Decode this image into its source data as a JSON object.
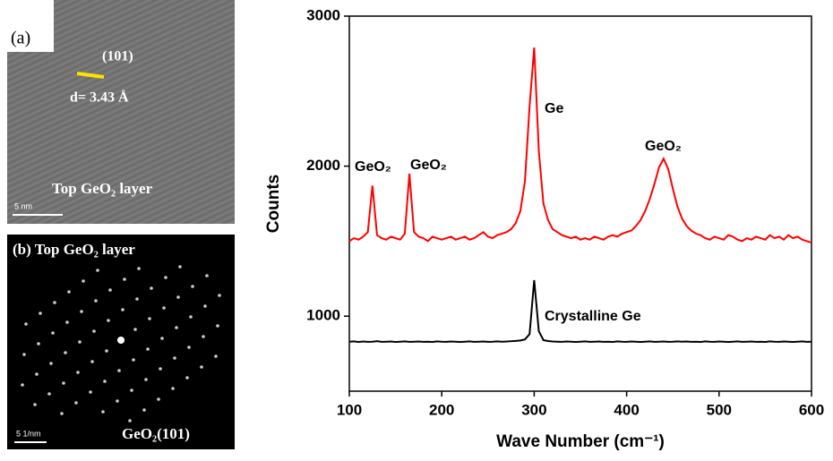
{
  "panels": {
    "a": {
      "label": "(a)",
      "plane": "(101)",
      "spacing": "d= 3.43 Å",
      "caption": "Top GeO₂ layer",
      "scale": "5 nm"
    },
    "b": {
      "label": "(b) Top GeO₂ layer",
      "caption": "GeO₂(101)",
      "scale": "5 1/nm"
    }
  },
  "chart_data": {
    "type": "line",
    "xlabel": "Wave Number (cm⁻¹)",
    "ylabel": "Counts",
    "xlim": [
      100,
      600
    ],
    "ylim": [
      500,
      3000
    ],
    "xticks": [
      100,
      200,
      300,
      400,
      500,
      600
    ],
    "yticks": [
      1000,
      2000,
      3000
    ],
    "x": [
      100,
      105,
      110,
      115,
      120,
      125,
      130,
      135,
      140,
      145,
      150,
      155,
      160,
      165,
      170,
      175,
      180,
      185,
      190,
      195,
      200,
      205,
      210,
      215,
      220,
      225,
      230,
      235,
      240,
      245,
      250,
      255,
      260,
      265,
      270,
      275,
      280,
      285,
      290,
      295,
      300,
      305,
      310,
      315,
      320,
      325,
      330,
      335,
      340,
      345,
      350,
      355,
      360,
      365,
      370,
      375,
      380,
      385,
      390,
      395,
      400,
      405,
      410,
      415,
      420,
      425,
      430,
      435,
      440,
      445,
      450,
      455,
      460,
      465,
      470,
      475,
      480,
      485,
      490,
      495,
      500,
      505,
      510,
      515,
      520,
      525,
      530,
      535,
      540,
      545,
      550,
      555,
      560,
      565,
      570,
      575,
      580,
      585,
      590,
      595,
      600
    ],
    "series": [
      {
        "color": "#ff0000",
        "values": [
          1500,
          1520,
          1510,
          1530,
          1560,
          1870,
          1540,
          1520,
          1510,
          1530,
          1520,
          1510,
          1550,
          1950,
          1560,
          1530,
          1520,
          1500,
          1530,
          1520,
          1510,
          1520,
          1530,
          1510,
          1520,
          1530,
          1510,
          1520,
          1540,
          1560,
          1530,
          1520,
          1540,
          1550,
          1560,
          1580,
          1620,
          1700,
          1900,
          2400,
          2790,
          2100,
          1750,
          1640,
          1580,
          1560,
          1540,
          1530,
          1520,
          1530,
          1510,
          1520,
          1510,
          1530,
          1520,
          1510,
          1530,
          1540,
          1530,
          1550,
          1560,
          1570,
          1600,
          1640,
          1700,
          1780,
          1880,
          1990,
          2050,
          1980,
          1850,
          1730,
          1650,
          1600,
          1570,
          1550,
          1540,
          1520,
          1510,
          1530,
          1520,
          1510,
          1540,
          1530,
          1510,
          1500,
          1520,
          1510,
          1530,
          1520,
          1510,
          1540,
          1520,
          1530,
          1510,
          1540,
          1520,
          1530,
          1510,
          1500,
          1490
        ]
      },
      {
        "color": "#000000",
        "values": [
          830,
          832,
          828,
          831,
          829,
          830,
          833,
          829,
          830,
          831,
          828,
          830,
          832,
          829,
          830,
          831,
          829,
          830,
          828,
          832,
          830,
          829,
          831,
          830,
          828,
          830,
          832,
          829,
          830,
          831,
          829,
          830,
          832,
          830,
          831,
          833,
          835,
          838,
          845,
          880,
          1240,
          900,
          840,
          834,
          831,
          830,
          829,
          831,
          830,
          828,
          830,
          832,
          829,
          830,
          831,
          829,
          830,
          828,
          832,
          830,
          829,
          831,
          830,
          828,
          830,
          832,
          829,
          830,
          831,
          829,
          830,
          832,
          830,
          831,
          829,
          830,
          828,
          832,
          830,
          829,
          831,
          830,
          828,
          830,
          832,
          829,
          830,
          831,
          829,
          830,
          828,
          832,
          830,
          829,
          831,
          830,
          828,
          830,
          832,
          829,
          830
        ]
      }
    ],
    "annotations": [
      "GeO₂",
      "GeO₂",
      "Ge",
      "GeO₂",
      "Crystalline Ge"
    ]
  }
}
